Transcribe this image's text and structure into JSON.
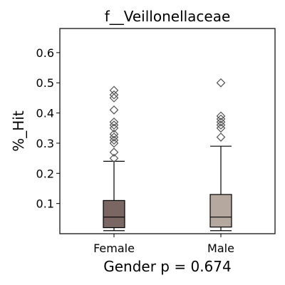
{
  "chart_data": {
    "type": "box",
    "title": "f__Veillonellaceae",
    "ylabel": "%_Hit",
    "xlabel": "Gender p = 0.674",
    "categories": [
      "Female",
      "Male"
    ],
    "ylim": [
      0,
      0.68
    ],
    "yticks": [
      0.1,
      0.2,
      0.3,
      0.4,
      0.5,
      0.6
    ],
    "grid": false,
    "legend": "none",
    "series": [
      {
        "category": "Female",
        "color": "#7a6662",
        "whisker_low": 0.01,
        "q1": 0.02,
        "median": 0.055,
        "q3": 0.11,
        "whisker_high": 0.24,
        "outliers": [
          0.25,
          0.27,
          0.3,
          0.31,
          0.32,
          0.33,
          0.35,
          0.36,
          0.37,
          0.41,
          0.45,
          0.46,
          0.475
        ]
      },
      {
        "category": "Male",
        "color": "#b5a89e",
        "whisker_low": 0.01,
        "q1": 0.022,
        "median": 0.055,
        "q3": 0.13,
        "whisker_high": 0.29,
        "outliers": [
          0.32,
          0.35,
          0.36,
          0.37,
          0.38,
          0.39,
          0.5
        ]
      }
    ]
  }
}
